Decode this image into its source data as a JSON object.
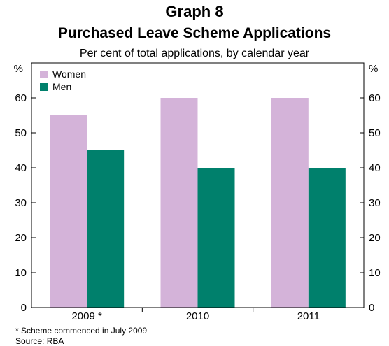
{
  "header": {
    "graph_label": "Graph 8",
    "title": "Purchased Leave Scheme Applications",
    "subtitle": "Per cent of total applications, by calendar year"
  },
  "footnote": "*  Scheme commenced in July 2009",
  "source": "Source: RBA",
  "chart_data": {
    "type": "bar",
    "categories": [
      "2009 *",
      "2010",
      "2011"
    ],
    "series": [
      {
        "name": "Women",
        "values": [
          55,
          60,
          60
        ],
        "color": "#d4b3d9"
      },
      {
        "name": "Men",
        "values": [
          45,
          40,
          40
        ],
        "color": "#00806c"
      }
    ],
    "ylabel_left": "%",
    "ylabel_right": "%",
    "ylim": [
      0,
      70
    ],
    "yticks": [
      0,
      10,
      20,
      30,
      40,
      50,
      60
    ],
    "grid": false,
    "legend": "top-left"
  }
}
